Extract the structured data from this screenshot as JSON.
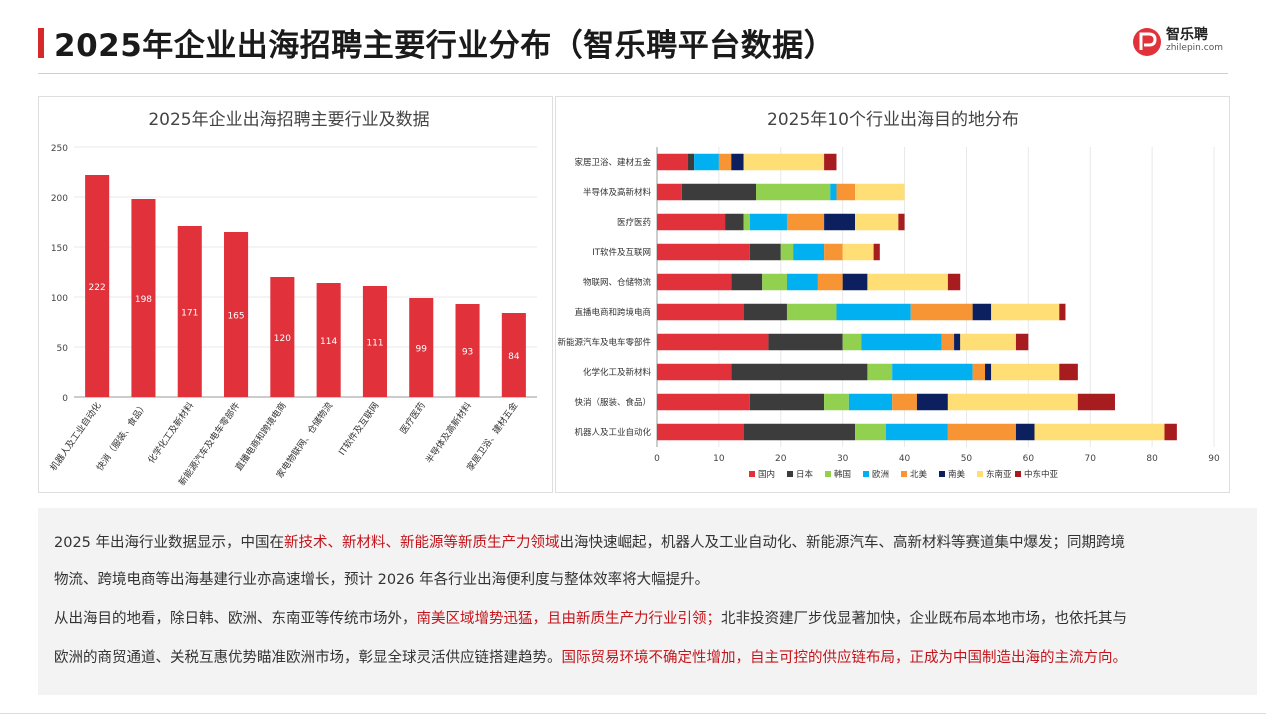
{
  "header": {
    "title": "2025年企业出海招聘主要行业分布（智乐聘平台数据）",
    "brand_name": "智乐聘",
    "brand_domain": "zhilepin.com"
  },
  "colors": {
    "accent": "#d62a2a",
    "bar": "#e1313a",
    "highlight_text": "#c3151b"
  },
  "chart_data": [
    {
      "type": "bar",
      "title": "2025年企业出海招聘主要行业及数据",
      "categories": [
        "机器人及工业自动化",
        "快消（服装、食品）",
        "化学化工及新材料",
        "新能源汽车及电车零部件",
        "直播电商和跨境电商",
        "家电物联网、仓储物流",
        "IT软件及互联网",
        "医疗医药",
        "半导体及高新材料",
        "家居卫浴、建材五金"
      ],
      "values": [
        222,
        198,
        171,
        165,
        120,
        114,
        111,
        99,
        93,
        84
      ],
      "ylim": [
        0,
        250
      ],
      "yticks": [
        0,
        50,
        100,
        150,
        200,
        250
      ],
      "grid": true,
      "data_labels": true
    },
    {
      "type": "bar",
      "orientation": "horizontal",
      "stacked": true,
      "title": "2025年10个行业出海目的地分布",
      "categories": [
        "家居卫浴、建材五金",
        "半导体及高新材料",
        "医疗医药",
        "IT软件及互联网",
        "物联网、仓储物流",
        "直播电商和跨境电商",
        "新能源汽车及电车零部件",
        "化学化工及新材料",
        "快消（服装、食品）",
        "机器人及工业自动化"
      ],
      "series": [
        {
          "name": "国内",
          "color": "#e1313a",
          "values": [
            5,
            4,
            11,
            15,
            12,
            14,
            18,
            12,
            15,
            14
          ]
        },
        {
          "name": "日本",
          "color": "#3c3c3c",
          "values": [
            1,
            12,
            3,
            5,
            5,
            7,
            12,
            22,
            12,
            18
          ]
        },
        {
          "name": "韩国",
          "color": "#92d050",
          "values": [
            0,
            12,
            1,
            2,
            4,
            8,
            3,
            4,
            4,
            5
          ]
        },
        {
          "name": "欧洲",
          "color": "#00b0f0",
          "values": [
            4,
            1,
            6,
            5,
            5,
            12,
            13,
            13,
            7,
            10
          ]
        },
        {
          "name": "北美",
          "color": "#f79433",
          "values": [
            2,
            3,
            6,
            3,
            4,
            10,
            2,
            2,
            4,
            11
          ]
        },
        {
          "name": "南美",
          "color": "#0c2060",
          "values": [
            2,
            0,
            5,
            0,
            4,
            3,
            1,
            1,
            5,
            3
          ]
        },
        {
          "name": "东南亚",
          "color": "#ffde75",
          "values": [
            13,
            8,
            7,
            5,
            13,
            11,
            9,
            11,
            21,
            21
          ]
        },
        {
          "name": "中东中亚",
          "color": "#a61c1f",
          "values": [
            2,
            0,
            1,
            1,
            2,
            1,
            2,
            3,
            6,
            2
          ]
        }
      ],
      "xlim": [
        0,
        90
      ],
      "xticks": [
        0,
        10,
        20,
        30,
        40,
        50,
        60,
        70,
        80,
        90
      ],
      "grid": true,
      "legend": "bottom"
    }
  ],
  "summary": {
    "p1_line1_a": "2025 年出海行业数据显示，中国在",
    "p1_line1_hl": "新技术、新材料、新能源等新质生产力领域",
    "p1_line1_b": "出海快速崛起，机器人及工业自动化、新能源汽车、高新材料等赛道集中爆发；同期跨境",
    "p1_line2": "物流、跨境电商等出海基建行业亦高速增长，预计 2026 年各行业出海便利度与整体效率将大幅提升。",
    "p2_line1_a": "从出海目的地看，除日韩、欧洲、东南亚等传统市场外，",
    "p2_line1_hl": "南美区域增势迅猛，且由新质生产力行业引领；",
    "p2_line1_b": "北非投资建厂步伐显著加快，企业既布局本地市场，也依托其与",
    "p2_line2_a": "欧洲的商贸通道、关税互惠优势瞄准欧洲市场，彰显全球灵活供应链搭建趋势。",
    "p2_line2_hl": "国际贸易环境不确定性增加，自主可控的供应链布局，正成为中国制造出海的主流方向。"
  }
}
